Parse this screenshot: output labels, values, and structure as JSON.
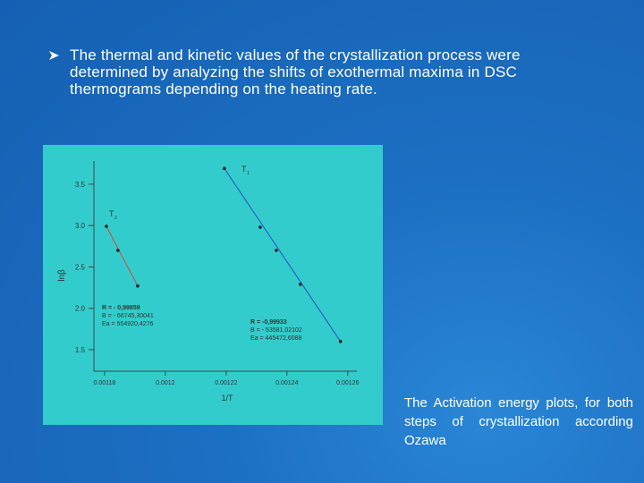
{
  "slide": {
    "bullet_lines": [
      "The thermal and kinetic values of the crystallization process were",
      "determined by analyzing the shifts of exothermal maxima in DSC",
      "thermograms depending on the heating rate."
    ],
    "caption": "The Activation energy plots, for both steps of crystallization according Ozawa"
  },
  "chart_data": {
    "type": "scatter",
    "x_label": "1/T",
    "y_label": "lnβ",
    "xlim": [
      0.0011765,
      0.001263
    ],
    "ylim": [
      1.24,
      3.78
    ],
    "xticks": [
      0.00118,
      0.0012,
      0.00122,
      0.00124,
      0.00126
    ],
    "yticks": [
      {
        "value": 1.5,
        "label": "1.5"
      },
      {
        "value": 2,
        "label": "2.0"
      },
      {
        "value": 2.5,
        "label": "2.5"
      },
      {
        "value": 3,
        "label": "3.0"
      },
      {
        "value": 3.5,
        "label": "3.5"
      }
    ],
    "series": [
      {
        "label": "T",
        "sub": "1",
        "color": "#2a4fc4",
        "x": [
          0.0012194,
          0.0012312,
          0.0012365,
          0.0012444,
          0.0012576
        ],
        "values": [
          3.69,
          2.98,
          2.7,
          2.29,
          1.6
        ],
        "stats": [
          "R = -0,99933",
          "B = - 53581,02102",
          "Ea = 445472,6088"
        ]
      },
      {
        "label": "T",
        "sub": "2",
        "color": "#e0403a",
        "x": [
          0.0011806,
          0.0011844,
          0.0011909
        ],
        "values": [
          2.99,
          2.7,
          2.27
        ],
        "stats": [
          "R = - 0,99859",
          "B = - 66745,30041",
          "Ea = 554920,4276"
        ]
      }
    ]
  }
}
